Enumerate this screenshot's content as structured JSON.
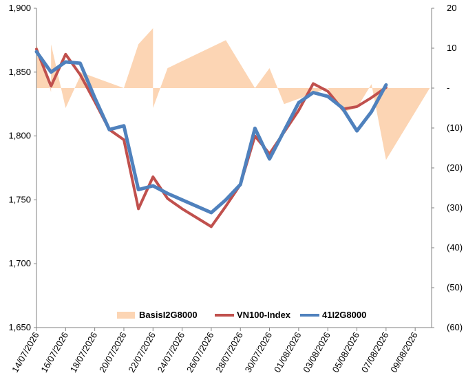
{
  "chart_data": {
    "type": "line",
    "x": [
      "14/07/2026",
      "15/07/2026",
      "16/07/2026",
      "17/07/2026",
      "18/07/2026",
      "19/07/2026",
      "20/07/2026",
      "21/07/2026",
      "22/07/2026",
      "23/07/2026",
      "24/07/2026",
      "25/07/2026",
      "26/07/2026",
      "27/07/2026",
      "28/07/2026",
      "29/07/2026",
      "30/07/2026",
      "31/07/2026",
      "01/08/2026",
      "02/08/2026",
      "03/08/2026",
      "04/08/2026",
      "05/08/2026",
      "06/08/2026",
      "07/08/2026",
      "08/08/2026",
      "09/08/2026",
      "10/08/2026"
    ],
    "x_tick_labels": [
      "14/07/2026",
      "16/07/2026",
      "18/07/2026",
      "20/07/2026",
      "22/07/2026",
      "24/07/2026",
      "26/07/2026",
      "28/07/2026",
      "30/07/2026",
      "01/08/2026",
      "03/08/2026",
      "05/08/2026",
      "07/08/2026",
      "09/08/2026"
    ],
    "area_series": {
      "name": "BasisI2G8000",
      "color": "#fcd5b4",
      "axis": "right",
      "points": [
        [
          "14/07/2026",
          -2
        ],
        [
          "14/07/2026",
          11
        ],
        [
          "15/07/2026",
          -1
        ],
        [
          "15/07/2026",
          11
        ],
        [
          "16/07/2026",
          -5
        ],
        [
          "17/07/2026",
          3
        ],
        [
          "17/07/2026",
          4
        ],
        [
          "20/07/2026",
          0
        ],
        [
          "21/07/2026",
          11
        ],
        [
          "22/07/2026",
          15
        ],
        [
          "22/07/2026",
          -5
        ],
        [
          "23/07/2026",
          5
        ],
        [
          "27/07/2026",
          12
        ],
        [
          "29/07/2026",
          0
        ],
        [
          "30/07/2026",
          5
        ],
        [
          "31/07/2026",
          -4
        ],
        [
          "03/08/2026",
          0
        ],
        [
          "04/08/2026",
          -6
        ],
        [
          "05/08/2026",
          -5
        ],
        [
          "06/08/2026",
          1
        ],
        [
          "07/08/2026",
          -18
        ],
        [
          "10/08/2026",
          0
        ]
      ]
    },
    "series": [
      {
        "name": "VN100-Index",
        "color": "#c0504d",
        "axis": "left",
        "values": [
          1868,
          1839,
          1864,
          1848,
          1827,
          1805,
          1797,
          1743,
          1768,
          1751,
          1743,
          1736,
          1729,
          1745,
          1762,
          1800,
          1786,
          1803,
          1820,
          1841,
          1835,
          1821,
          1823,
          1830,
          1838,
          null,
          null,
          null
        ]
      },
      {
        "name": "41I2G8000",
        "color": "#4f81bd",
        "axis": "left",
        "values": [
          1866,
          1850,
          1858,
          1857,
          1830,
          1805,
          1808,
          1758,
          1761,
          1755,
          1750,
          1745,
          1740,
          1750,
          1762,
          1806,
          1782,
          1804,
          1826,
          1834,
          1831,
          1822,
          1804,
          1819,
          1840,
          null,
          null,
          null
        ]
      }
    ],
    "y_left": {
      "ylim": [
        1650,
        1900
      ],
      "ticks": [
        "1,650",
        "1,700",
        "1,750",
        "1,800",
        "1,850",
        "1,900"
      ]
    },
    "y_right": {
      "ylim": [
        -60,
        20
      ],
      "ticks": [
        "(60)",
        "(50)",
        "(40)",
        "(30)",
        "(20)",
        "(10)",
        "-",
        "10",
        "20"
      ]
    },
    "legend": {
      "position": "bottom-inside",
      "items": [
        "BasisI2G8000",
        "VN100-Index",
        "41I2G8000"
      ]
    },
    "grid": false
  }
}
